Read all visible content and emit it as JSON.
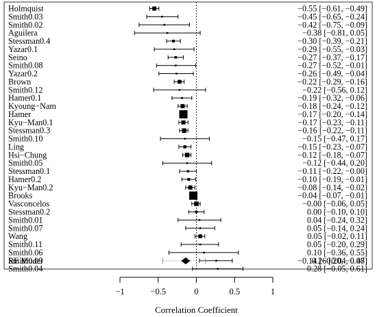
{
  "chart_data": {
    "type": "forest",
    "xlabel": "Correlation Coefficient",
    "xlim": [
      -1,
      1
    ],
    "xticks": [
      -1,
      -0.5,
      0,
      0.5,
      1
    ],
    "xtick_labels": [
      "−1",
      "−0.5",
      "0",
      "0.5",
      "1"
    ],
    "reference_line": 0,
    "studies": [
      {
        "label": "Holmquist",
        "est": -0.55,
        "lo": -0.61,
        "hi": -0.49,
        "text": "−0.55 [−0.61, −0.49]"
      },
      {
        "label": "Smith0.03",
        "est": -0.45,
        "lo": -0.65,
        "hi": -0.24,
        "text": "−0.45 [−0.65, −0.24]"
      },
      {
        "label": "Smith0.02",
        "est": -0.42,
        "lo": -0.75,
        "hi": -0.09,
        "text": "−0.42 [−0.75, −0.09]"
      },
      {
        "label": "Aguilera",
        "est": -0.38,
        "lo": -0.81,
        "hi": 0.05,
        "text": "−0.38 [−0.81, 0.05]"
      },
      {
        "label": "Stessman0.4",
        "est": -0.3,
        "lo": -0.39,
        "hi": -0.21,
        "text": "−0.30 [−0.39, −0.21]"
      },
      {
        "label": "Yazar0.1",
        "est": -0.29,
        "lo": -0.55,
        "hi": -0.03,
        "text": "−0.29 [−0.55, −0.03]"
      },
      {
        "label": "Seino",
        "est": -0.27,
        "lo": -0.37,
        "hi": -0.17,
        "text": "−0.27 [−0.37, −0.17]"
      },
      {
        "label": "Smith0.08",
        "est": -0.27,
        "lo": -0.52,
        "hi": -0.01,
        "text": "−0.27 [−0.52, −0.01]"
      },
      {
        "label": "Yazar0.2",
        "est": -0.26,
        "lo": -0.49,
        "hi": -0.04,
        "text": "−0.26 [−0.49, −0.04]"
      },
      {
        "label": "Brown",
        "est": -0.22,
        "lo": -0.29,
        "hi": -0.16,
        "text": "−0.22 [−0.29, −0.16]"
      },
      {
        "label": "Smith0.12",
        "est": -0.22,
        "lo": -0.56,
        "hi": 0.12,
        "text": "−0.22 [−0.56, 0.12]"
      },
      {
        "label": "Hamer0.1",
        "est": -0.19,
        "lo": -0.32,
        "hi": -0.06,
        "text": "−0.19 [−0.32, −0.06]"
      },
      {
        "label": "Kyoung−Nam",
        "est": -0.18,
        "lo": -0.24,
        "hi": -0.12,
        "text": "−0.18 [−0.24, −0.12]"
      },
      {
        "label": "Hamer",
        "est": -0.17,
        "lo": -0.2,
        "hi": -0.14,
        "text": "−0.17 [−0.20, −0.14]"
      },
      {
        "label": "Kyu−Man0.1",
        "est": -0.17,
        "lo": -0.23,
        "hi": -0.11,
        "text": "−0.17 [−0.23, −0.11]"
      },
      {
        "label": "Stessman0.3",
        "est": -0.16,
        "lo": -0.22,
        "hi": -0.11,
        "text": "−0.16 [−0.22, −0.11]"
      },
      {
        "label": "Smith0.10",
        "est": -0.15,
        "lo": -0.47,
        "hi": 0.17,
        "text": "−0.15 [−0.47, 0.17]"
      },
      {
        "label": "Ling",
        "est": -0.15,
        "lo": -0.23,
        "hi": -0.07,
        "text": "−0.15 [−0.23, −0.07]"
      },
      {
        "label": "Hsi−Chung",
        "est": -0.12,
        "lo": -0.18,
        "hi": -0.07,
        "text": "−0.12 [−0.18, −0.07]"
      },
      {
        "label": "Smith0.05",
        "est": -0.12,
        "lo": -0.44,
        "hi": 0.2,
        "text": "−0.12 [−0.44, 0.20]"
      },
      {
        "label": "Stessman0.1",
        "est": -0.11,
        "lo": -0.22,
        "hi": -0.0,
        "text": "−0.11 [−0.22, −0.00]"
      },
      {
        "label": "Hamer0.2",
        "est": -0.1,
        "lo": -0.19,
        "hi": -0.01,
        "text": "−0.10 [−0.19, −0.01]"
      },
      {
        "label": "Kyu−Man0.2",
        "est": -0.08,
        "lo": -0.14,
        "hi": -0.02,
        "text": "−0.08 [−0.14, −0.02]"
      },
      {
        "label": "Brooks",
        "est": -0.04,
        "lo": -0.07,
        "hi": -0.01,
        "text": "−0.04 [−0.07, −0.01]"
      },
      {
        "label": "Vasconcelos",
        "est": -0.0,
        "lo": -0.06,
        "hi": 0.05,
        "text": "−0.00 [−0.06, 0.05]"
      },
      {
        "label": "Stessman0.2",
        "est": 0.0,
        "lo": -0.1,
        "hi": 0.1,
        "text": "0.00 [−0.10, 0.10]"
      },
      {
        "label": "Smith0.01",
        "est": 0.04,
        "lo": -0.24,
        "hi": 0.32,
        "text": "0.04 [−0.24, 0.32]"
      },
      {
        "label": "Smith0.07",
        "est": 0.05,
        "lo": -0.14,
        "hi": 0.24,
        "text": "0.05 [−0.14, 0.24]"
      },
      {
        "label": "Wang",
        "est": 0.05,
        "lo": -0.02,
        "hi": 0.11,
        "text": "0.05 [−0.02, 0.11]"
      },
      {
        "label": "Smith0.11",
        "est": 0.05,
        "lo": -0.2,
        "hi": 0.29,
        "text": "0.05 [−0.20, 0.29]"
      },
      {
        "label": "Smith0.06",
        "est": 0.1,
        "lo": -0.36,
        "hi": 0.55,
        "text": "0.10 [−0.36, 0.55]"
      },
      {
        "label": "Smith0.09",
        "est": 0.26,
        "lo": 0.04,
        "hi": 0.47,
        "text": "0.26 [0.04, 0.47]"
      },
      {
        "label": "Smith0.04",
        "est": 0.28,
        "lo": -0.05,
        "hi": 0.61,
        "text": "0.28 [−0.05, 0.61]"
      }
    ],
    "summary": {
      "label": "RE Model",
      "est": -0.14,
      "lo": -0.2,
      "hi": -0.08,
      "pi_lo": -0.44,
      "pi_hi": 0.12,
      "text": "−0.14 [−0.20, −0.08]"
    }
  }
}
